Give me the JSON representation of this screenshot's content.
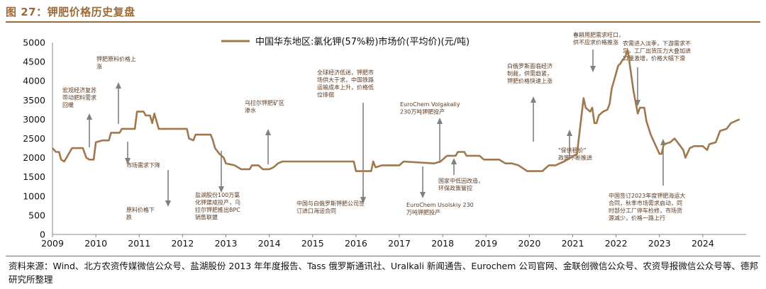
{
  "figure_title": "图 27：钾肥价格历史复盘",
  "source_text": "资料来源：Wind、北方农资传媒微信公众号、盐湖股份 2013 年年度报告、Tass 俄罗斯通讯社、Uralkali 新闻通告、Eurochem 公司官网、金联创微信公众号、农资导报微信公众号等、德邦研究所整理",
  "colors": {
    "line": "#a0784e",
    "accent": "#9b6b3a",
    "arrow": "#808080",
    "axis": "#888888"
  },
  "chart_data": {
    "type": "line",
    "title": "",
    "xlabel": "",
    "ylabel": "",
    "ylim": [
      0,
      5000
    ],
    "yticks": [
      0,
      500,
      1000,
      1500,
      2000,
      2500,
      3000,
      3500,
      4000,
      4500,
      5000
    ],
    "xlim": [
      2009,
      2025
    ],
    "xticks": [
      2009,
      2010,
      2011,
      2012,
      2013,
      2014,
      2015,
      2016,
      2017,
      2018,
      2019,
      2020,
      2021,
      2022,
      2023,
      2024
    ],
    "grid": false,
    "legend_position": "top",
    "series": [
      {
        "name": "中国华东地区:氯化钾(57%粉)市场价(平均价)(元/吨)",
        "points": [
          [
            2009.0,
            2250
          ],
          [
            2009.08,
            2150
          ],
          [
            2009.15,
            2150
          ],
          [
            2009.2,
            1950
          ],
          [
            2009.27,
            1900
          ],
          [
            2009.35,
            2050
          ],
          [
            2009.45,
            2250
          ],
          [
            2009.7,
            2250
          ],
          [
            2009.78,
            2000
          ],
          [
            2009.85,
            1950
          ],
          [
            2009.95,
            1950
          ],
          [
            2010.0,
            2400
          ],
          [
            2010.15,
            2450
          ],
          [
            2010.3,
            2450
          ],
          [
            2010.35,
            2650
          ],
          [
            2010.55,
            2650
          ],
          [
            2010.6,
            2750
          ],
          [
            2010.9,
            2750
          ],
          [
            2010.95,
            3200
          ],
          [
            2011.1,
            3200
          ],
          [
            2011.15,
            3100
          ],
          [
            2011.25,
            3100
          ],
          [
            2011.3,
            2900
          ],
          [
            2011.35,
            3150
          ],
          [
            2011.45,
            2750
          ],
          [
            2011.95,
            2750
          ],
          [
            2012.1,
            2750
          ],
          [
            2012.15,
            2500
          ],
          [
            2012.25,
            2450
          ],
          [
            2012.3,
            2600
          ],
          [
            2012.65,
            2600
          ],
          [
            2012.7,
            2450
          ],
          [
            2012.75,
            2250
          ],
          [
            2012.85,
            2100
          ],
          [
            2012.95,
            2000
          ],
          [
            2013.0,
            1850
          ],
          [
            2013.2,
            1800
          ],
          [
            2013.35,
            1700
          ],
          [
            2013.55,
            1700
          ],
          [
            2013.6,
            1800
          ],
          [
            2013.75,
            1800
          ],
          [
            2013.85,
            1700
          ],
          [
            2014.0,
            1700
          ],
          [
            2014.1,
            1750
          ],
          [
            2014.2,
            1850
          ],
          [
            2014.3,
            1900
          ],
          [
            2015.0,
            1900
          ],
          [
            2015.95,
            1900
          ],
          [
            2016.0,
            1650
          ],
          [
            2016.35,
            1650
          ],
          [
            2016.4,
            1900
          ],
          [
            2016.45,
            1750
          ],
          [
            2016.6,
            1800
          ],
          [
            2017.0,
            1800
          ],
          [
            2017.1,
            1900
          ],
          [
            2017.8,
            1850
          ],
          [
            2017.95,
            1900
          ],
          [
            2018.0,
            1950
          ],
          [
            2018.1,
            2050
          ],
          [
            2018.3,
            2050
          ],
          [
            2018.35,
            2150
          ],
          [
            2018.5,
            2150
          ],
          [
            2018.55,
            2050
          ],
          [
            2018.85,
            2050
          ],
          [
            2018.95,
            1950
          ],
          [
            2019.0,
            1950
          ],
          [
            2019.3,
            1950
          ],
          [
            2019.45,
            1850
          ],
          [
            2019.6,
            1850
          ],
          [
            2019.75,
            1800
          ],
          [
            2019.95,
            1650
          ],
          [
            2020.3,
            1650
          ],
          [
            2020.45,
            1800
          ],
          [
            2020.6,
            1800
          ],
          [
            2020.8,
            1900
          ],
          [
            2020.95,
            2000
          ],
          [
            2021.1,
            2100
          ],
          [
            2021.15,
            2600
          ],
          [
            2021.25,
            3550
          ],
          [
            2021.3,
            3300
          ],
          [
            2021.35,
            3250
          ],
          [
            2021.4,
            3200
          ],
          [
            2021.45,
            3300
          ],
          [
            2021.5,
            2900
          ],
          [
            2021.55,
            2900
          ],
          [
            2021.6,
            3100
          ],
          [
            2021.7,
            3200
          ],
          [
            2021.8,
            3250
          ],
          [
            2021.85,
            3400
          ],
          [
            2021.9,
            3800
          ],
          [
            2021.95,
            4000
          ],
          [
            2022.0,
            4200
          ],
          [
            2022.05,
            4400
          ],
          [
            2022.1,
            4450
          ],
          [
            2022.15,
            4550
          ],
          [
            2022.2,
            4600
          ],
          [
            2022.27,
            4800
          ],
          [
            2022.3,
            4550
          ],
          [
            2022.35,
            4150
          ],
          [
            2022.4,
            3750
          ],
          [
            2022.45,
            3450
          ],
          [
            2022.5,
            3150
          ],
          [
            2022.55,
            3300
          ],
          [
            2022.65,
            3300
          ],
          [
            2022.7,
            2950
          ],
          [
            2022.8,
            2600
          ],
          [
            2022.9,
            2350
          ],
          [
            2023.0,
            2100
          ],
          [
            2023.05,
            2100
          ],
          [
            2023.1,
            2350
          ],
          [
            2023.25,
            2400
          ],
          [
            2023.35,
            2500
          ],
          [
            2023.45,
            2350
          ],
          [
            2023.55,
            2200
          ],
          [
            2023.6,
            2000
          ],
          [
            2023.7,
            2250
          ],
          [
            2023.8,
            2300
          ],
          [
            2024.0,
            2300
          ],
          [
            2024.1,
            2200
          ],
          [
            2024.15,
            2350
          ],
          [
            2024.3,
            2400
          ],
          [
            2024.4,
            2700
          ],
          [
            2024.55,
            2750
          ],
          [
            2024.65,
            2900
          ],
          [
            2024.75,
            2950
          ],
          [
            2024.85,
            3000
          ]
        ]
      }
    ],
    "annotations": [
      {
        "text": [
          "宏观经济复苏",
          "带动肥料需求",
          "回暖"
        ],
        "arrow": "up"
      },
      {
        "text": [
          "钾肥原料价格上",
          "涨"
        ],
        "arrow": "up"
      },
      {
        "text": [
          "市场需求下降"
        ],
        "arrow": "down"
      },
      {
        "text": [
          "原料价格下",
          "跌"
        ],
        "arrow": "down"
      },
      {
        "text": [
          "盐湖股份100万氯",
          "化钾建成投产，乌",
          "拉尔钾肥推出BPC",
          "销售联盟"
        ],
        "arrow": "down"
      },
      {
        "text": [
          "乌拉尔钾肥矿区",
          "渗水"
        ],
        "arrow": "up"
      },
      {
        "text": [
          "全球经济低迷，钾肥市",
          "场供大于求，中国铁路",
          "运输成本上升，价格低",
          "位徘徊"
        ],
        "arrow": "down"
      },
      {
        "text": [
          "中国与白俄罗斯钾肥公司签",
          "订进口海运合同"
        ],
        "arrow": "down"
      },
      {
        "text": [
          "EuroChem Volgakaliy",
          "230万吨钾肥投产"
        ],
        "arrow": "up"
      },
      {
        "text": [
          "EuroChem Usolskiy 230",
          "万吨钾肥投产"
        ],
        "arrow": "down"
      },
      {
        "text": [
          "国家中低因改造，",
          "环保政策管控"
        ],
        "arrow": "up"
      },
      {
        "text": [
          "白俄罗斯面临经济",
          "制裁，供需趋紧，",
          "钾肥价格快速上涨"
        ],
        "arrow": "up"
      },
      {
        "text": [
          "\"保供稳价\"",
          "政策不断推进"
        ],
        "arrow": "up"
      },
      {
        "text": [
          "春耕用肥需求旺口，",
          "供不应求价格推涨"
        ],
        "arrow": "down"
      },
      {
        "text": [
          "农需进入淡季，下游需求不",
          "足，工厂出货压力大叠加进",
          "口量激增，价格大幅下滑"
        ],
        "arrow": "down"
      },
      {
        "text": [
          "中国签订2023年度钾肥海运大",
          "合同，秋季市场需求启动，同",
          "时部分工厂停车检修，市场货",
          "源减少，价格一路上行"
        ],
        "arrow": "up"
      }
    ]
  }
}
